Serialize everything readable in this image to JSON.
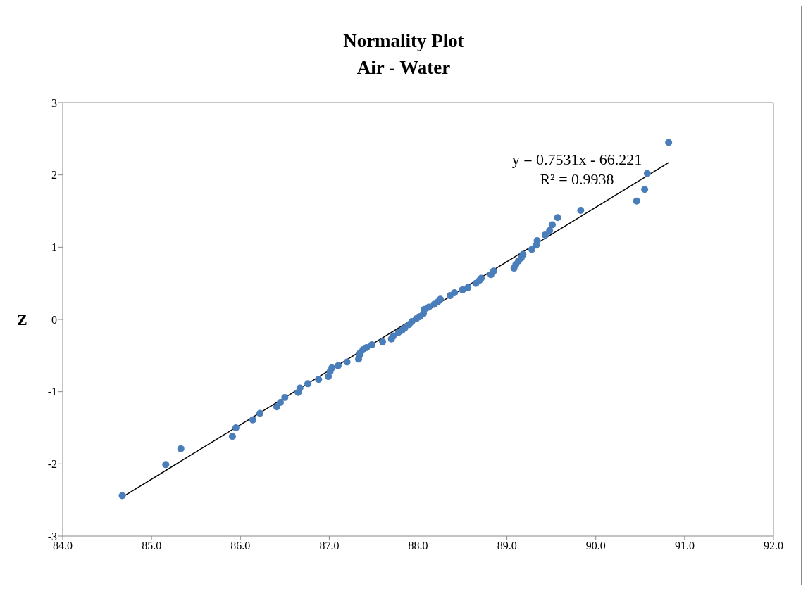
{
  "chart_data": {
    "type": "scatter",
    "title": "Normality Plot",
    "subtitle": "Air - Water",
    "ylabel": "Z",
    "xlim": [
      84,
      92
    ],
    "xticks": [
      {
        "value": 84,
        "label": "84.0"
      },
      {
        "value": 85,
        "label": "85.0"
      },
      {
        "value": 86,
        "label": "86.0"
      },
      {
        "value": 87,
        "label": "87.0"
      },
      {
        "value": 88,
        "label": "88.0"
      },
      {
        "value": 89,
        "label": "89.0"
      },
      {
        "value": 90,
        "label": "90.0"
      },
      {
        "value": 91,
        "label": "91.0"
      },
      {
        "value": 92,
        "label": "92.0"
      }
    ],
    "ylim": [
      -3,
      3
    ],
    "yticks": [
      -3,
      -2,
      -1,
      0,
      1,
      2,
      3
    ],
    "grid": false,
    "legend": false,
    "marker": "circle",
    "annotations": [
      "y = 0.7531x - 66.221",
      "R² = 0.9938"
    ],
    "series": [
      {
        "color": "#4a7ebb",
        "x": [
          84.67,
          85.16,
          85.33,
          85.91,
          85.95,
          86.14,
          86.22,
          86.41,
          86.45,
          86.5,
          86.65,
          86.67,
          86.76,
          86.88,
          86.99,
          87.01,
          87.03,
          87.1,
          87.2,
          87.33,
          87.34,
          87.35,
          87.38,
          87.42,
          87.48,
          87.6,
          87.7,
          87.72,
          87.78,
          87.82,
          87.85,
          87.9,
          87.93,
          87.98,
          88.02,
          88.06,
          88.07,
          88.12,
          88.18,
          88.22,
          88.25,
          88.36,
          88.41,
          88.5,
          88.56,
          88.65,
          88.69,
          88.71,
          88.82,
          88.85,
          89.08,
          89.1,
          89.13,
          89.16,
          89.18,
          89.28,
          89.33,
          89.34,
          89.43,
          89.48,
          89.51,
          89.57,
          89.83,
          90.46,
          90.55,
          90.58,
          90.82
        ],
        "values": [
          -2.44,
          -2.01,
          -1.79,
          -1.62,
          -1.5,
          -1.39,
          -1.3,
          -1.21,
          -1.15,
          -1.08,
          -1.01,
          -0.95,
          -0.89,
          -0.83,
          -0.79,
          -0.72,
          -0.67,
          -0.64,
          -0.59,
          -0.55,
          -0.5,
          -0.46,
          -0.42,
          -0.39,
          -0.35,
          -0.31,
          -0.27,
          -0.23,
          -0.18,
          -0.15,
          -0.12,
          -0.07,
          -0.03,
          0.01,
          0.04,
          0.08,
          0.14,
          0.17,
          0.21,
          0.24,
          0.28,
          0.33,
          0.37,
          0.41,
          0.44,
          0.5,
          0.54,
          0.57,
          0.62,
          0.67,
          0.71,
          0.76,
          0.81,
          0.85,
          0.9,
          0.97,
          1.03,
          1.09,
          1.17,
          1.23,
          1.31,
          1.41,
          1.51,
          1.64,
          1.8,
          2.02,
          2.45
        ]
      },
      {
        "type": "line",
        "color": "#000000",
        "marker": "none",
        "x": [
          84.67,
          90.82
        ],
        "values": [
          -2.46,
          2.17
        ]
      }
    ]
  }
}
